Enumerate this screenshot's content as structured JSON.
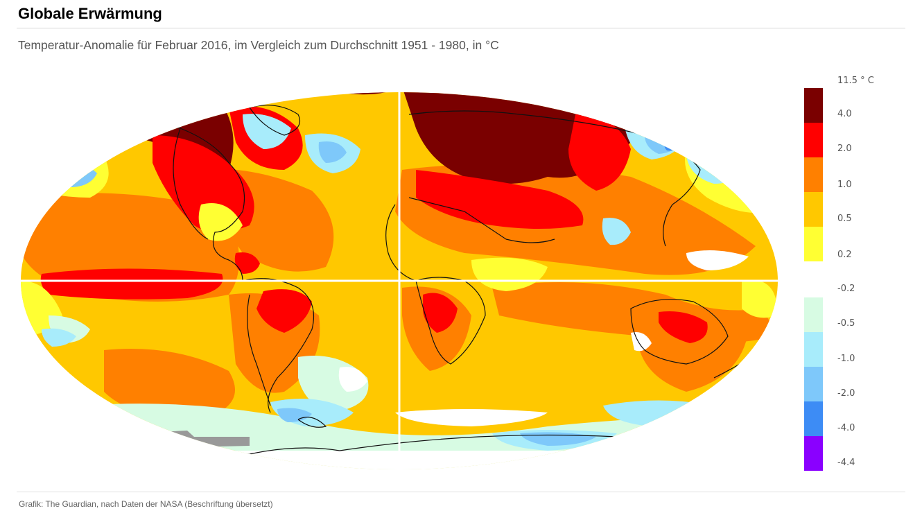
{
  "header": {
    "title": "Globale Erwärmung",
    "subtitle": "Temperatur-Anomalie für Februar 2016, im Vergleich zum Durchschnitt 1951 - 1980, in °C"
  },
  "legend": {
    "top_label": "11.5 ° C",
    "labels": [
      "4.0",
      "2.0",
      "1.0",
      "0.5",
      "0.2",
      "-0.2",
      "-0.5",
      "-1.0",
      "-2.0",
      "-4.0",
      "-4.4"
    ],
    "warm_colors": [
      "#7a0000",
      "#ff0000",
      "#ff8000",
      "#ffc800",
      "#ffff33"
    ],
    "cool_colors": [
      "#d7fbe3",
      "#a8ecfb",
      "#7ec8fa",
      "#3d8cf5",
      "#8a00ff"
    ]
  },
  "map": {
    "colors": {
      "base": "#ffc800",
      "very_warm": "#7a0000",
      "warm": "#ff0000",
      "orange": "#ff8000",
      "yellow": "#ffff33",
      "light": "#d7fbe3",
      "cyan": "#a8ecfb",
      "blue": "#7ec8fa",
      "dark_blue": "#3d8cf5",
      "missing": "#999999"
    }
  },
  "footer": {
    "source": "Grafik:  The Guardian, nach Daten der NASA  (Beschriftung übersetzt)"
  }
}
